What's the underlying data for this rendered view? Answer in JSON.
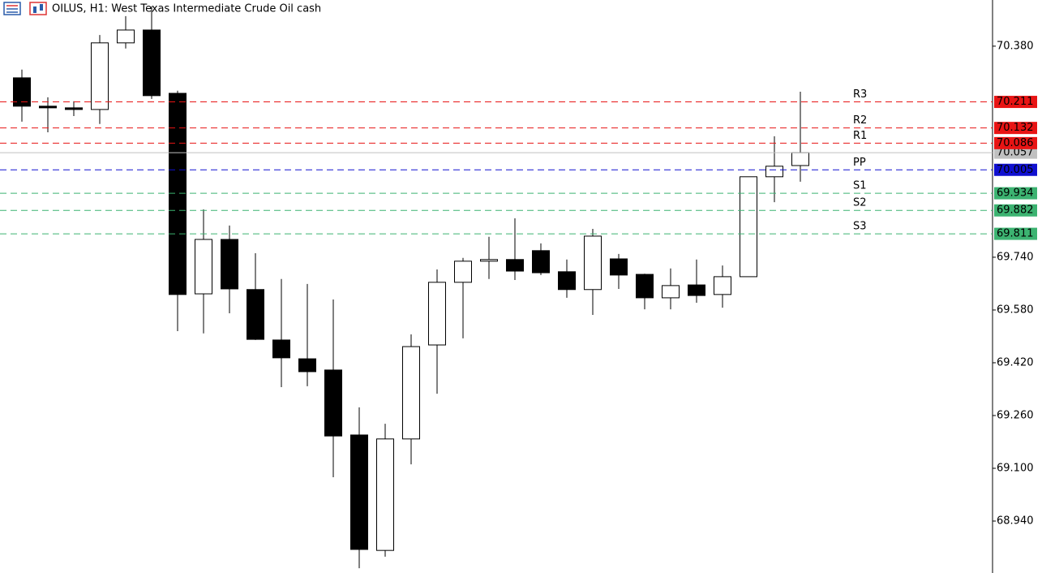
{
  "chart_data": {
    "type": "candlestick",
    "title": "OILUS, H1:  West Texas Intermediate Crude Oil cash",
    "ylim": [
      68.7825,
      70.52
    ],
    "yticks": [
      {
        "value": 70.38,
        "label": "70.380"
      },
      {
        "value": 69.74,
        "label": "69.740"
      },
      {
        "value": 69.58,
        "label": "69.580"
      },
      {
        "value": 69.42,
        "label": "69.420"
      },
      {
        "value": 69.26,
        "label": "69.260"
      },
      {
        "value": 69.1,
        "label": "69.100"
      },
      {
        "value": 68.94,
        "label": "68.940"
      }
    ],
    "open": [
      70.284,
      70.198,
      70.193,
      70.188,
      70.39,
      70.429,
      70.237,
      69.629,
      69.794,
      69.642,
      69.489,
      69.432,
      69.398,
      69.201,
      68.851,
      69.189,
      69.474,
      69.664,
      69.728,
      69.733,
      69.76,
      69.696,
      69.642,
      69.735,
      69.688,
      69.617,
      69.656,
      69.627,
      69.681,
      69.984,
      70.018
    ],
    "high": [
      70.309,
      70.225,
      70.213,
      70.414,
      70.471,
      70.501,
      70.245,
      69.885,
      69.836,
      69.752,
      69.674,
      69.659,
      69.612,
      69.285,
      69.235,
      69.506,
      69.703,
      69.738,
      69.802,
      69.858,
      69.782,
      69.733,
      69.826,
      69.75,
      69.69,
      69.706,
      69.733,
      69.715,
      69.984,
      70.107,
      70.242
    ],
    "low": [
      70.151,
      70.119,
      70.168,
      70.144,
      70.373,
      70.22,
      69.516,
      69.509,
      69.57,
      69.489,
      69.346,
      69.349,
      69.073,
      68.797,
      68.832,
      69.112,
      69.326,
      69.494,
      69.674,
      69.671,
      69.686,
      69.617,
      69.565,
      69.644,
      69.582,
      69.582,
      69.602,
      69.587,
      69.681,
      69.907,
      69.969
    ],
    "close": [
      70.198,
      70.193,
      70.188,
      70.39,
      70.429,
      70.23,
      69.627,
      69.794,
      69.644,
      69.491,
      69.435,
      69.393,
      69.198,
      68.854,
      69.189,
      69.469,
      69.664,
      69.728,
      69.733,
      69.698,
      69.693,
      69.642,
      69.804,
      69.686,
      69.617,
      69.654,
      69.624,
      69.681,
      69.984,
      70.016,
      70.057
    ],
    "up_color": "#ffffff",
    "down_color": "#000000",
    "levels": [
      {
        "name": "R3",
        "value": 70.211,
        "color": "#e81414"
      },
      {
        "name": "R2",
        "value": 70.132,
        "color": "#e81414"
      },
      {
        "name": "R1",
        "value": 70.086,
        "color": "#e81414"
      },
      {
        "name": "PP",
        "value": 70.005,
        "color": "#1010d0"
      },
      {
        "name": "S1",
        "value": 69.934,
        "color": "#3cb371"
      },
      {
        "name": "S2",
        "value": 69.882,
        "color": "#3cb371"
      },
      {
        "name": "S3",
        "value": 69.811,
        "color": "#3cb371"
      }
    ],
    "current_price": {
      "value": 70.057,
      "color": "#c0c0c0"
    }
  }
}
